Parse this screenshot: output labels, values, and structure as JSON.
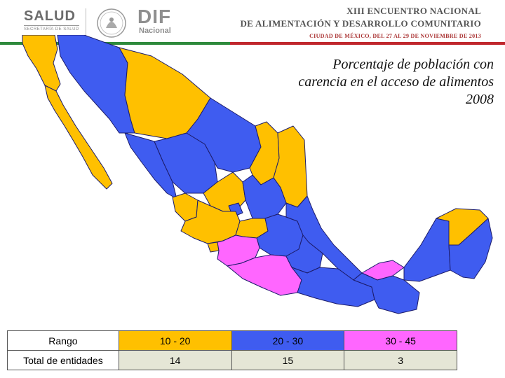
{
  "header": {
    "salud_logo": "SALUD",
    "salud_sub": "SECRETARÍA DE SALUD",
    "dif_logo": "DIF",
    "dif_sub": "Nacional",
    "event_line1": "XIII ENCUENTRO NACIONAL",
    "event_line2": "DE ALIMENTACIÓN Y DESARROLLO COMUNITARIO",
    "event_line3": "CIUDAD DE MÉXICO, DEL 27 AL 29 DE NOVIEMBRE DE 2013"
  },
  "map": {
    "title": "Porcentaje de población con carencia en el acceso de alimentos 2008",
    "colors": {
      "range_10_20": "#ffc000",
      "range_20_30": "#3f5cf0",
      "range_30_45": "#ff66ff",
      "border": "#1c1c6a"
    }
  },
  "legend": {
    "row_header": "Rango",
    "row_counts_label": "Total de entidades",
    "ranges": [
      {
        "label": "10 - 20",
        "count": "14",
        "color": "#ffc000"
      },
      {
        "label": "20 - 30",
        "count": "15",
        "color": "#3f5cf0"
      },
      {
        "label": "30 - 45",
        "count": "3",
        "color": "#ff66ff"
      }
    ]
  }
}
